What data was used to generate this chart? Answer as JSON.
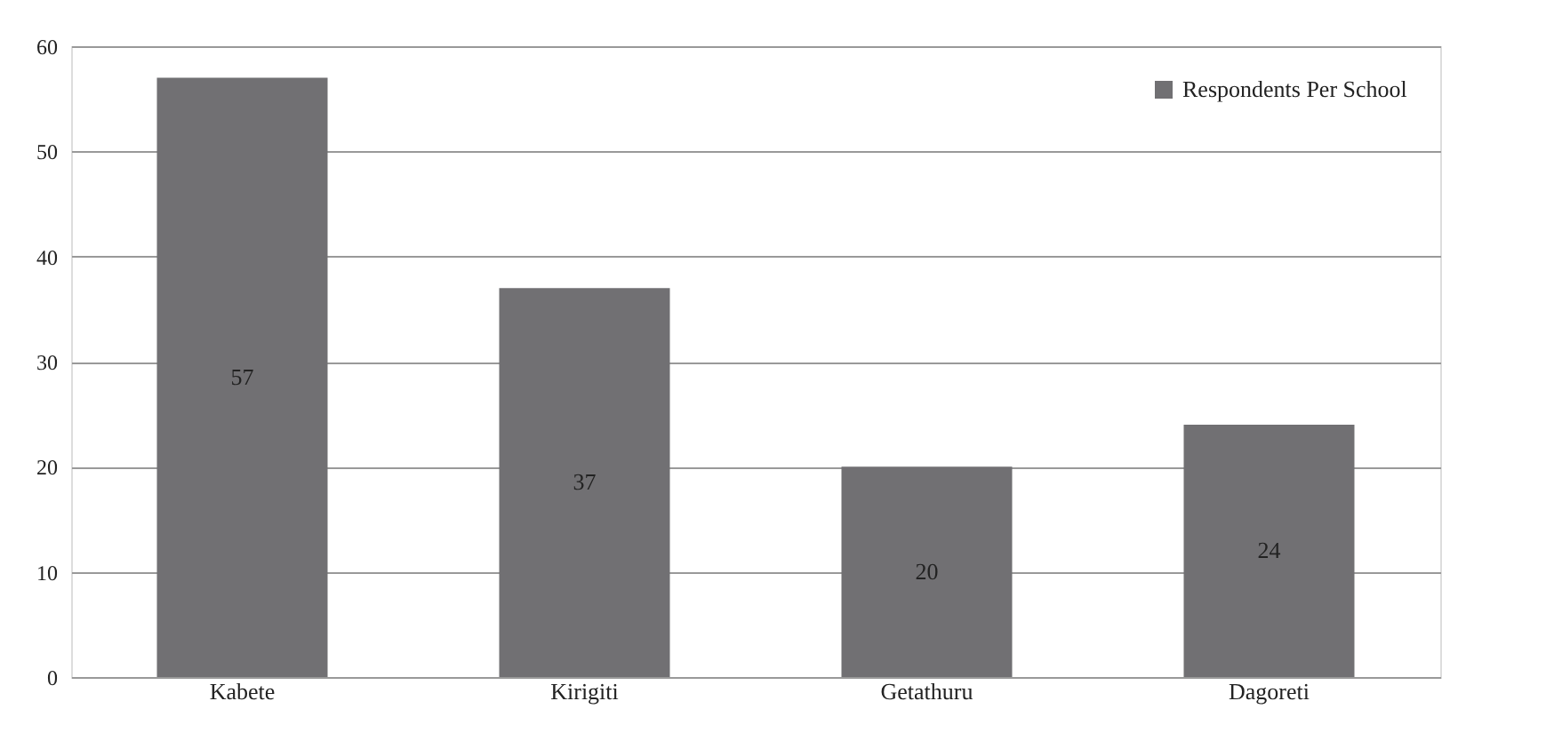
{
  "chart_data": {
    "type": "bar",
    "categories": [
      "Kabete",
      "Kirigiti",
      "Getathuru",
      "Dagoreti"
    ],
    "series": [
      {
        "name": "Respondents Per School",
        "color": "#717073",
        "values": [
          57,
          37,
          20,
          24
        ]
      }
    ],
    "ylim": [
      0,
      60
    ],
    "yticks": [
      0,
      10,
      20,
      30,
      40,
      50,
      60
    ],
    "grid": "y",
    "legend": "top right",
    "data_labels": true
  }
}
